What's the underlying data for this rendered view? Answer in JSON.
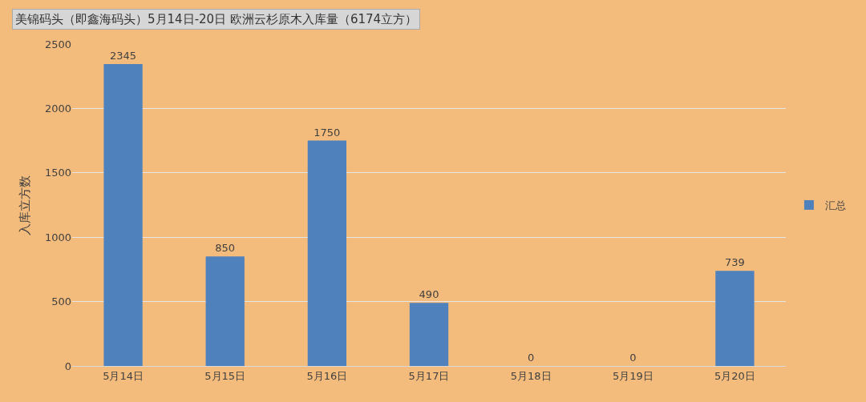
{
  "chart_data": {
    "type": "bar",
    "title": "美锦码头（即鑫海码头）5月14日-20日 欧洲云杉原木入库量（6174立方）",
    "ylabel": "入库立方数",
    "categories": [
      "5月14日",
      "5月15日",
      "5月16日",
      "5月17日",
      "5月18日",
      "5月19日",
      "5月20日"
    ],
    "series": [
      {
        "name": "汇总",
        "color": "#4f81bd",
        "values": [
          2345,
          850,
          1750,
          490,
          0,
          0,
          739
        ]
      }
    ],
    "ylim": [
      0,
      2500
    ],
    "yticks": [
      0,
      500,
      1000,
      1500,
      2000,
      2500
    ],
    "grid": "y",
    "legend": "right",
    "data_labels": true
  }
}
